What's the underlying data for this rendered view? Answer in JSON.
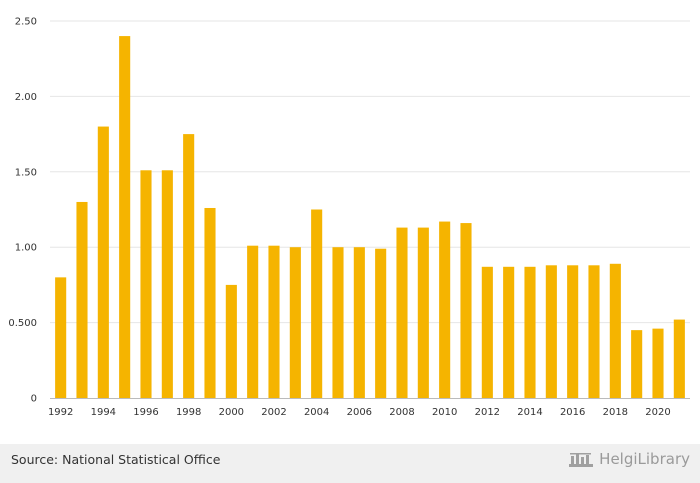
{
  "chart_data": {
    "type": "bar",
    "categories": [
      "1992",
      "1993",
      "1994",
      "1995",
      "1996",
      "1997",
      "1998",
      "1999",
      "2000",
      "2001",
      "2002",
      "2003",
      "2004",
      "2005",
      "2006",
      "2007",
      "2008",
      "2009",
      "2010",
      "2011",
      "2012",
      "2013",
      "2014",
      "2015",
      "2016",
      "2017",
      "2018",
      "2019",
      "2020",
      "2021"
    ],
    "values": [
      0.8,
      1.3,
      1.8,
      2.4,
      1.51,
      1.51,
      1.75,
      1.26,
      0.75,
      1.01,
      1.01,
      1.0,
      1.25,
      1.0,
      1.0,
      0.99,
      1.13,
      1.13,
      1.17,
      1.16,
      0.87,
      0.87,
      0.87,
      0.88,
      0.88,
      0.88,
      0.89,
      0.45,
      0.46,
      0.52
    ],
    "x_tick_labels": [
      "1992",
      "1994",
      "1996",
      "1998",
      "2000",
      "2002",
      "2004",
      "2006",
      "2008",
      "2010",
      "2012",
      "2014",
      "2016",
      "2018",
      "2020"
    ],
    "y_ticks": [
      0,
      0.5,
      1.0,
      1.5,
      2.0,
      2.5
    ],
    "y_tick_labels": [
      "0",
      "0.500",
      "1.00",
      "1.50",
      "2.00",
      "2.50"
    ],
    "ylim": [
      0,
      2.5
    ],
    "title": "",
    "xlabel": "",
    "ylabel": "",
    "bar_color": "#f5b400",
    "grid": true
  },
  "footer": {
    "source": "Source: National Statistical Office",
    "brand": "HelgiLibrary"
  }
}
